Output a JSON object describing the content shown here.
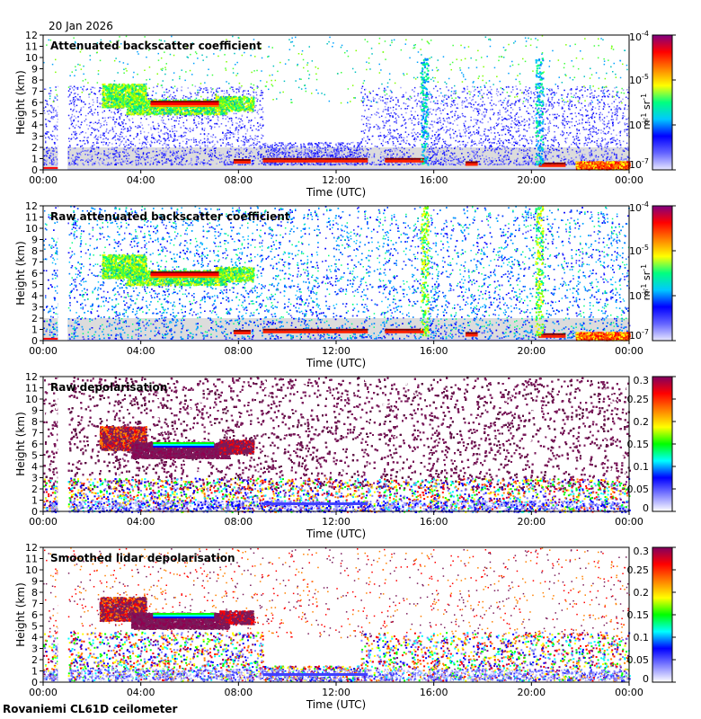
{
  "header": {
    "date": "20 Jan 2026"
  },
  "footer": {
    "instrument": "Rovaniemi CL61D ceilometer"
  },
  "colors": {
    "background_gray": "#d8d8d8",
    "jet": [
      "#000080",
      "#0000ff",
      "#0080ff",
      "#00ffff",
      "#80ff80",
      "#ffff00",
      "#ff8000",
      "#ff0000",
      "#800000"
    ],
    "depol_dark": "#7a1a5a"
  },
  "chart_data": [
    {
      "type": "heatmap",
      "title": "Attenuated backscatter coefficient",
      "xlabel": "Time (UTC)",
      "ylabel": "Height (km)",
      "xticks": [
        "00:00",
        "04:00",
        "08:00",
        "12:00",
        "16:00",
        "20:00",
        "00:00"
      ],
      "xlim_hours": [
        0,
        24
      ],
      "yticks": [
        "0",
        "1",
        "2",
        "3",
        "4",
        "5",
        "6",
        "7",
        "8",
        "9",
        "10",
        "11",
        "12"
      ],
      "ylim": [
        0,
        12
      ],
      "colorbar": {
        "scale": "log",
        "labels": [
          "10-4",
          "10-5",
          "10-6",
          "10-7"
        ],
        "units": "m-1 sr-1"
      },
      "features": [
        {
          "name": "mid-level cloud",
          "t_start": 3.5,
          "t_end": 7.4,
          "height_km": 5.9,
          "intensity": "high"
        },
        {
          "name": "ice cloud layer",
          "t_start": 2.0,
          "t_end": 8.5,
          "height_km": 6.5,
          "intensity": "medium"
        },
        {
          "name": "low cloud base",
          "t_start": 9.0,
          "t_end": 13.3,
          "height_km": 0.9,
          "intensity": "high"
        },
        {
          "name": "low cloud base",
          "t_start": 14.0,
          "t_end": 15.7,
          "height_km": 0.9,
          "intensity": "high"
        },
        {
          "name": "near-surface layer",
          "t_start": 22.0,
          "t_end": 24.0,
          "height_km": 0.3,
          "intensity": "high"
        }
      ]
    },
    {
      "type": "heatmap",
      "title": "Raw attenuated backscatter coefficient",
      "xlabel": "Time (UTC)",
      "ylabel": "Height (km)",
      "xticks": [
        "00:00",
        "04:00",
        "08:00",
        "12:00",
        "16:00",
        "20:00",
        "00:00"
      ],
      "xlim_hours": [
        0,
        24
      ],
      "yticks": [
        "0",
        "1",
        "2",
        "3",
        "4",
        "5",
        "6",
        "7",
        "8",
        "9",
        "10",
        "11",
        "12"
      ],
      "ylim": [
        0,
        12
      ],
      "colorbar": {
        "scale": "log",
        "labels": [
          "10-4",
          "10-5",
          "10-6",
          "10-7"
        ],
        "units": "m-1 sr-1"
      }
    },
    {
      "type": "heatmap",
      "title": "Raw depolarisation",
      "xlabel": "Time (UTC)",
      "ylabel": "Height (km)",
      "xticks": [
        "00:00",
        "04:00",
        "08:00",
        "12:00",
        "16:00",
        "20:00",
        "00:00"
      ],
      "xlim_hours": [
        0,
        24
      ],
      "yticks": [
        "0",
        "1",
        "2",
        "3",
        "4",
        "5",
        "6",
        "7",
        "8",
        "9",
        "10",
        "11",
        "12"
      ],
      "ylim": [
        0,
        12
      ],
      "colorbar": {
        "scale": "linear",
        "range": [
          0,
          0.3
        ],
        "labels": [
          "0.3",
          "0.25",
          "0.2",
          "0.15",
          "0.1",
          "0.05",
          "0"
        ]
      }
    },
    {
      "type": "heatmap",
      "title": "Smoothed lidar depolarisation",
      "xlabel": "Time (UTC)",
      "ylabel": "Height (km)",
      "xticks": [
        "00:00",
        "04:00",
        "08:00",
        "12:00",
        "16:00",
        "20:00",
        "00:00"
      ],
      "xlim_hours": [
        0,
        24
      ],
      "yticks": [
        "0",
        "1",
        "2",
        "3",
        "4",
        "5",
        "6",
        "7",
        "8",
        "9",
        "10",
        "11",
        "12"
      ],
      "ylim": [
        0,
        12
      ],
      "colorbar": {
        "scale": "linear",
        "range": [
          0,
          0.3
        ],
        "labels": [
          "0.3",
          "0.25",
          "0.2",
          "0.15",
          "0.1",
          "0.05",
          "0"
        ]
      }
    }
  ]
}
